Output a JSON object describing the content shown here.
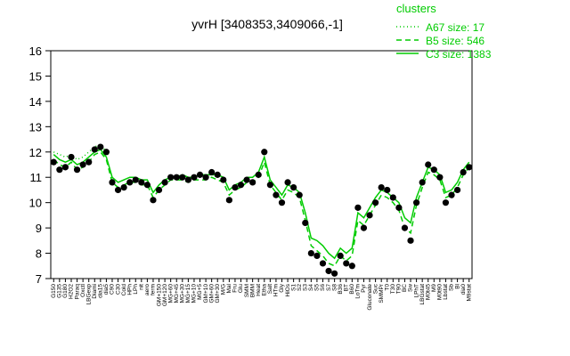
{
  "chart_data": {
    "type": "line",
    "title": "yvrH [3408353,3409066,-1]",
    "legend_title": "clusters",
    "categories": [
      "G150",
      "G135",
      "G180",
      "H2O2",
      "Paraq",
      "Oxctl",
      "LBGexp",
      "Diami",
      "dia15",
      "dia5",
      "C90",
      "C30",
      "Cold",
      "HPh",
      "LPh",
      "nit",
      "aero",
      "ferm",
      "GM+150",
      "GM+120",
      "MG+60",
      "MG+45",
      "MG+30",
      "MG+15",
      "MG+10",
      "MG+5",
      "GM+10",
      "GM+60",
      "GM+30",
      "M/G",
      "Mal",
      "Fru",
      "Glu",
      "SMM",
      "BMM",
      "Heat",
      "Etha",
      "Salt",
      "HTm",
      "Gly",
      "HiOs",
      "S1",
      "S2",
      "S3",
      "S4",
      "S5",
      "S6",
      "S7",
      "S8",
      "B36",
      "BT",
      "B60",
      "LoTm",
      "Pyr",
      "Gluconate",
      "Suc",
      "SMMPr",
      "T0",
      "T30",
      "T90",
      "BC",
      "Sw",
      "LPhT",
      "LBGstat",
      "M0t45",
      "M9",
      "M0t90",
      "Lbstat",
      "Sb",
      "Bl",
      "dia0",
      "M9stat"
    ],
    "points": {
      "color": "#000000",
      "values": [
        11.6,
        11.3,
        11.4,
        11.8,
        11.3,
        11.5,
        11.6,
        12.1,
        12.2,
        12.0,
        10.8,
        10.5,
        10.6,
        10.8,
        10.9,
        10.8,
        10.7,
        10.1,
        10.5,
        10.8,
        11.0,
        11.0,
        11.0,
        10.9,
        11.0,
        11.1,
        11.0,
        11.2,
        11.1,
        10.9,
        10.1,
        10.6,
        10.7,
        10.9,
        10.8,
        11.1,
        12.0,
        10.7,
        10.3,
        10.0,
        10.8,
        10.6,
        10.3,
        9.2,
        8.0,
        7.9,
        7.6,
        7.3,
        7.2,
        7.9,
        7.6,
        7.5,
        9.8,
        9.0,
        9.5,
        10.0,
        10.6,
        10.5,
        10.2,
        9.8,
        9.0,
        8.5,
        10.0,
        10.8,
        11.5,
        11.3,
        11.0,
        10.0,
        10.3,
        10.5,
        11.2,
        11.4
      ]
    },
    "series": [
      {
        "name": "A67 size: 17",
        "color": "#00cc00",
        "dash": "1,3",
        "values": [
          12.0,
          11.9,
          11.8,
          11.9,
          11.7,
          11.8,
          12.0,
          12.2,
          12.3,
          12.0,
          null,
          null,
          null,
          null,
          null,
          null,
          null,
          null,
          null,
          null,
          null,
          null,
          null,
          null,
          null,
          null,
          null,
          null,
          null,
          null,
          null,
          null,
          null,
          null,
          null,
          null,
          null,
          null,
          null,
          null,
          null,
          null,
          null,
          null,
          null,
          null,
          null,
          null,
          null,
          null,
          null,
          null,
          null,
          null,
          null,
          null,
          null,
          null,
          null,
          null,
          null,
          null,
          null,
          null,
          null,
          null,
          null,
          null,
          null,
          null,
          null,
          null
        ]
      },
      {
        "name": "B5 size: 546",
        "color": "#00cc00",
        "dash": "6,4",
        "values": [
          11.7,
          11.5,
          11.4,
          11.6,
          11.3,
          11.4,
          11.6,
          11.9,
          12.0,
          11.7,
          10.8,
          10.6,
          10.7,
          10.8,
          10.8,
          10.7,
          10.7,
          10.2,
          10.5,
          10.7,
          10.9,
          10.9,
          10.9,
          10.8,
          10.9,
          10.9,
          10.9,
          11.0,
          10.9,
          10.8,
          10.3,
          10.5,
          10.6,
          10.8,
          10.8,
          11.0,
          11.6,
          10.7,
          10.4,
          10.1,
          10.5,
          10.4,
          10.2,
          9.3,
          8.3,
          8.1,
          7.9,
          7.6,
          7.5,
          7.9,
          7.7,
          7.9,
          9.3,
          9.1,
          9.5,
          9.9,
          10.3,
          10.2,
          10.0,
          9.7,
          9.0,
          8.8,
          9.9,
          10.6,
          11.2,
          11.1,
          10.9,
          10.2,
          10.3,
          10.6,
          11.1,
          11.4
        ]
      },
      {
        "name": "C3 size: 1383",
        "color": "#00cc00",
        "dash": "none",
        "values": [
          11.9,
          11.7,
          11.6,
          11.7,
          11.5,
          11.6,
          11.8,
          12.0,
          12.1,
          11.8,
          11.0,
          10.8,
          10.9,
          11.0,
          11.0,
          10.9,
          10.9,
          10.4,
          10.7,
          10.9,
          11.0,
          11.0,
          11.1,
          11.0,
          11.0,
          11.1,
          11.1,
          11.1,
          11.1,
          11.0,
          10.5,
          10.7,
          10.8,
          11.0,
          11.0,
          11.2,
          11.8,
          10.9,
          10.6,
          10.3,
          10.7,
          10.6,
          10.4,
          9.6,
          8.6,
          8.5,
          8.3,
          8.0,
          7.8,
          8.2,
          8.0,
          8.2,
          9.6,
          9.4,
          9.8,
          10.2,
          10.5,
          10.4,
          10.2,
          10.0,
          9.4,
          9.2,
          10.2,
          10.8,
          11.4,
          11.3,
          11.1,
          10.4,
          10.5,
          10.8,
          11.3,
          11.6
        ]
      }
    ],
    "ylim": [
      7,
      16
    ],
    "yticks": [
      7,
      8,
      9,
      10,
      11,
      12,
      13,
      14,
      15,
      16
    ]
  }
}
